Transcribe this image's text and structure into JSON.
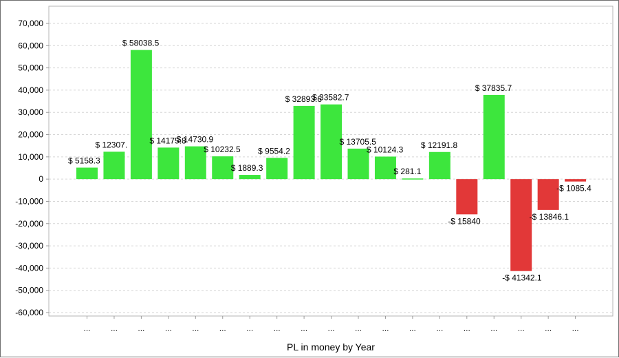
{
  "chart_data": {
    "type": "bar",
    "title": "",
    "xlabel": "PL in money by Year",
    "ylabel": "",
    "ylim": [
      -60000,
      70000
    ],
    "yticks": [
      70000,
      60000,
      50000,
      40000,
      30000,
      20000,
      10000,
      0,
      -10000,
      -20000,
      -30000,
      -40000,
      -50000,
      -60000
    ],
    "ytick_labels": [
      "70,000",
      "60,000",
      "50,000",
      "40,000",
      "30,000",
      "20,000",
      "10,000",
      "0",
      "-10,000",
      "-20,000",
      "-30,000",
      "-40,000",
      "-50,000",
      "-60,000"
    ],
    "grid": true,
    "categories": [
      "...",
      "...",
      "...",
      "...",
      "...",
      "...",
      "...",
      "...",
      "...",
      "...",
      "...",
      "...",
      "...",
      "...",
      "...",
      "...",
      "...",
      "...",
      "..."
    ],
    "values": [
      5158.3,
      12307.1,
      58038.5,
      14175.8,
      14730.9,
      10232.5,
      1889.3,
      9554.2,
      32893.6,
      33582.7,
      13705.5,
      10124.3,
      281.1,
      12191.8,
      -15840,
      37835.7,
      -41342.1,
      -13846.1,
      -1085.4
    ],
    "data_labels": [
      "$ 5158.3",
      "$ 12307.",
      "$ 58038.5",
      "$ 14175.8",
      "$ 14730.9",
      "$ 10232.5",
      "$ 1889.3",
      "$ 9554.2",
      "$ 32893.6",
      "$ 33582.7",
      "$ 13705.5",
      "$ 10124.3",
      "$ 281.1",
      "$ 12191.8",
      "-$ 15840",
      "$ 37835.7",
      "-$ 41342.1",
      "-$ 13846.1",
      "-$ 1085.4"
    ],
    "colors": {
      "positive": "#3de63d",
      "negative": "#e23838",
      "grid": "#d6d6d6",
      "axis": "#9a9a9a"
    }
  }
}
